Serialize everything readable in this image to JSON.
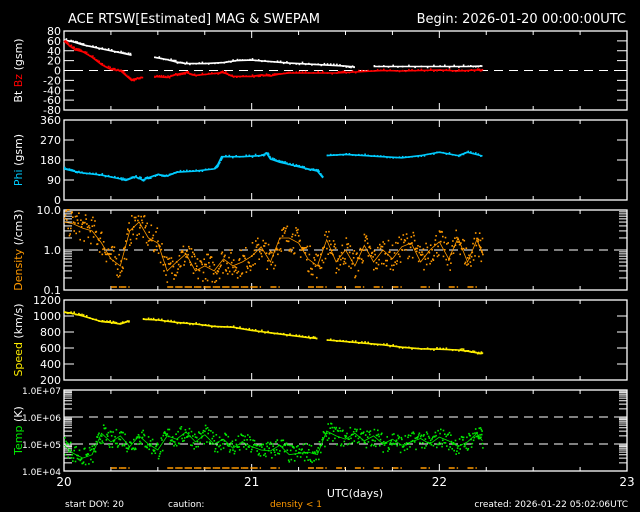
{
  "header": {
    "title": "ACE RTSW[Estimated] MAG & SWEPAM",
    "begin": "Begin: 2026-01-20 00:00:00UTC"
  },
  "footer": {
    "start_doy": "start DOY:  20",
    "caution": "caution:",
    "caution_density": "density < 1",
    "created": "created: 2026-01-22 05:02:06UTC",
    "xlabel": "UTC(days)"
  },
  "colors": {
    "bt": "#ffffff",
    "bz": "#ff0000",
    "phi": "#00ccff",
    "density": "#ff9900",
    "speed": "#ffee00",
    "temp": "#00ee00",
    "axis": "#ffffff"
  },
  "chart_data": [
    {
      "type": "line",
      "id": "mag",
      "ylabel_parts": [
        "Bt",
        "Bz",
        "(gsm)"
      ],
      "ylim": [
        -80,
        80
      ],
      "scale": "linear",
      "yticks": [
        80,
        60,
        40,
        20,
        0,
        -20,
        -40,
        -60,
        -80
      ],
      "ytick_labels": [
        "80",
        "60",
        "40",
        "20",
        "0",
        "-20",
        "-40",
        "-60",
        "-80"
      ],
      "dashed": [
        0
      ],
      "series": [
        {
          "name": "Bt",
          "color": "#ffffff",
          "points": [
            [
              20.0,
              62
            ],
            [
              20.05,
              58
            ],
            [
              20.1,
              52
            ],
            [
              20.2,
              44
            ],
            [
              20.3,
              36
            ],
            [
              20.36,
              31
            ],
            [
              20.42,
              null
            ],
            [
              20.48,
              27
            ],
            [
              20.55,
              22
            ],
            [
              20.6,
              17
            ],
            [
              20.65,
              14
            ],
            [
              20.75,
              14
            ],
            [
              20.85,
              16
            ],
            [
              20.92,
              20
            ],
            [
              21.0,
              21
            ],
            [
              21.1,
              18
            ],
            [
              21.2,
              15
            ],
            [
              21.3,
              13
            ],
            [
              21.4,
              11
            ],
            [
              21.5,
              9
            ],
            [
              21.55,
              7
            ],
            [
              21.62,
              null
            ],
            [
              21.65,
              8
            ],
            [
              21.8,
              8
            ],
            [
              22.0,
              8
            ],
            [
              22.15,
              8
            ],
            [
              22.23,
              9
            ]
          ]
        },
        {
          "name": "Bz",
          "color": "#ff0000",
          "points": [
            [
              20.0,
              60
            ],
            [
              20.03,
              50
            ],
            [
              20.06,
              42
            ],
            [
              20.1,
              38
            ],
            [
              20.15,
              27
            ],
            [
              20.2,
              12
            ],
            [
              20.25,
              2
            ],
            [
              20.3,
              0
            ],
            [
              20.33,
              -10
            ],
            [
              20.36,
              -20
            ],
            [
              20.38,
              -17
            ],
            [
              20.42,
              -14
            ],
            [
              20.44,
              null
            ],
            [
              20.48,
              -12
            ],
            [
              20.55,
              -14
            ],
            [
              20.6,
              -8
            ],
            [
              20.65,
              -4
            ],
            [
              20.7,
              -10
            ],
            [
              20.8,
              -6
            ],
            [
              20.85,
              -4
            ],
            [
              20.9,
              -12
            ],
            [
              21.0,
              -12
            ],
            [
              21.05,
              -9
            ],
            [
              21.1,
              -11
            ],
            [
              21.15,
              -7
            ],
            [
              21.2,
              -5
            ],
            [
              21.3,
              -5
            ],
            [
              21.45,
              -5
            ],
            [
              21.5,
              -4
            ],
            [
              21.6,
              -2
            ],
            [
              21.7,
              0
            ],
            [
              21.8,
              -1
            ],
            [
              21.9,
              0
            ],
            [
              22.0,
              1
            ],
            [
              22.1,
              -1
            ],
            [
              22.2,
              1
            ],
            [
              22.23,
              0
            ]
          ]
        }
      ]
    },
    {
      "type": "line",
      "id": "phi",
      "ylabel_parts": [
        "Phi",
        "(gsm)"
      ],
      "ylim": [
        0,
        360
      ],
      "scale": "linear",
      "yticks": [
        360,
        270,
        180,
        90,
        0
      ],
      "ytick_labels": [
        "360",
        "270",
        "180",
        "90",
        "0"
      ],
      "dashed": [],
      "series": [
        {
          "name": "Phi",
          "color": "#00ccff",
          "points": [
            [
              20.0,
              140
            ],
            [
              20.05,
              130
            ],
            [
              20.1,
              122
            ],
            [
              20.2,
              112
            ],
            [
              20.3,
              95
            ],
            [
              20.33,
              88
            ],
            [
              20.38,
              105
            ],
            [
              20.42,
              90
            ],
            [
              20.45,
              100
            ],
            [
              20.5,
              115
            ],
            [
              20.55,
              108
            ],
            [
              20.6,
              125
            ],
            [
              20.7,
              130
            ],
            [
              20.8,
              140
            ],
            [
              20.82,
              160
            ],
            [
              20.84,
              195
            ],
            [
              20.95,
              195
            ],
            [
              21.05,
              200
            ],
            [
              21.08,
              210
            ],
            [
              21.1,
              185
            ],
            [
              21.15,
              170
            ],
            [
              21.2,
              160
            ],
            [
              21.25,
              150
            ],
            [
              21.3,
              140
            ],
            [
              21.35,
              130
            ],
            [
              21.38,
              100
            ],
            [
              21.4,
              null
            ],
            [
              21.4,
              200
            ],
            [
              21.5,
              205
            ],
            [
              21.6,
              200
            ],
            [
              21.7,
              195
            ],
            [
              21.8,
              190
            ],
            [
              21.9,
              200
            ],
            [
              22.0,
              215
            ],
            [
              22.1,
              200
            ],
            [
              22.15,
              215
            ],
            [
              22.23,
              198
            ]
          ]
        }
      ]
    },
    {
      "type": "scatter",
      "id": "density",
      "ylabel_parts": [
        "Density",
        "(/cm3)"
      ],
      "ylim": [
        0.1,
        10
      ],
      "scale": "log",
      "yticks": [
        10,
        1,
        0.1
      ],
      "ytick_labels": [
        "10.0",
        "1.0",
        "0.1"
      ],
      "dashed": [
        1
      ],
      "series": [
        {
          "name": "Density",
          "color": "#ff9900",
          "points": [
            [
              20.0,
              5
            ],
            [
              20.05,
              4.5
            ],
            [
              20.1,
              3.5
            ],
            [
              20.15,
              3
            ],
            [
              20.2,
              1.5
            ],
            [
              20.25,
              0.6
            ],
            [
              20.3,
              0.4
            ],
            [
              20.35,
              3
            ],
            [
              20.4,
              5
            ],
            [
              20.45,
              2
            ],
            [
              20.5,
              1.5
            ],
            [
              20.55,
              0.3
            ],
            [
              20.6,
              0.5
            ],
            [
              20.65,
              0.8
            ],
            [
              20.7,
              0.3
            ],
            [
              20.75,
              0.4
            ],
            [
              20.8,
              0.3
            ],
            [
              20.85,
              0.6
            ],
            [
              20.9,
              0.4
            ],
            [
              20.95,
              0.5
            ],
            [
              21.0,
              0.7
            ],
            [
              21.05,
              1.2
            ],
            [
              21.1,
              0.5
            ],
            [
              21.15,
              2
            ],
            [
              21.2,
              2
            ],
            [
              21.25,
              1.5
            ],
            [
              21.3,
              0.6
            ],
            [
              21.35,
              0.4
            ],
            [
              21.4,
              1.8
            ],
            [
              21.45,
              0.5
            ],
            [
              21.5,
              1
            ],
            [
              21.55,
              0.4
            ],
            [
              21.6,
              1.3
            ],
            [
              21.65,
              0.5
            ],
            [
              21.7,
              1
            ],
            [
              21.75,
              0.6
            ],
            [
              21.8,
              1.2
            ],
            [
              21.85,
              1.5
            ],
            [
              21.9,
              0.5
            ],
            [
              21.95,
              1
            ],
            [
              22.0,
              1.6
            ],
            [
              22.05,
              0.6
            ],
            [
              22.1,
              2
            ],
            [
              22.15,
              0.5
            ],
            [
              22.2,
              1.8
            ],
            [
              22.23,
              0.8
            ]
          ]
        }
      ]
    },
    {
      "type": "line",
      "id": "speed",
      "ylabel_parts": [
        "Speed",
        "(km/s)"
      ],
      "ylim": [
        200,
        1200
      ],
      "scale": "linear",
      "yticks": [
        1200,
        1000,
        800,
        600,
        400,
        200
      ],
      "ytick_labels": [
        "1200",
        "1000",
        "800",
        "600",
        "400",
        "200"
      ],
      "dashed": [],
      "series": [
        {
          "name": "Speed",
          "color": "#ffee00",
          "points": [
            [
              20.0,
              1050
            ],
            [
              20.05,
              1030
            ],
            [
              20.1,
              1000
            ],
            [
              20.2,
              930
            ],
            [
              20.25,
              920
            ],
            [
              20.3,
              900
            ],
            [
              20.35,
              940
            ],
            [
              20.38,
              null
            ],
            [
              20.42,
              960
            ],
            [
              20.5,
              950
            ],
            [
              20.6,
              920
            ],
            [
              20.7,
              900
            ],
            [
              20.8,
              870
            ],
            [
              20.9,
              860
            ],
            [
              21.0,
              820
            ],
            [
              21.1,
              790
            ],
            [
              21.2,
              760
            ],
            [
              21.3,
              730
            ],
            [
              21.35,
              720
            ],
            [
              21.38,
              null
            ],
            [
              21.4,
              700
            ],
            [
              21.5,
              680
            ],
            [
              21.6,
              660
            ],
            [
              21.7,
              640
            ],
            [
              21.8,
              610
            ],
            [
              21.9,
              590
            ],
            [
              22.0,
              585
            ],
            [
              22.1,
              575
            ],
            [
              22.15,
              560
            ],
            [
              22.2,
              540
            ],
            [
              22.23,
              530
            ]
          ]
        }
      ]
    },
    {
      "type": "scatter",
      "id": "temp",
      "ylabel_parts": [
        "Temp",
        "(K)"
      ],
      "ylim": [
        10000,
        10000000
      ],
      "scale": "log",
      "yticks": [
        10000000,
        1000000,
        100000,
        10000
      ],
      "ytick_labels": [
        "1.0E+07",
        "1.0E+06",
        "1.0E+05",
        "1.0E+04"
      ],
      "dashed": [
        1000000,
        100000
      ],
      "series": [
        {
          "name": "Temp",
          "color": "#00ee00",
          "points": [
            [
              20.0,
              90000
            ],
            [
              20.05,
              45000
            ],
            [
              20.1,
              30000
            ],
            [
              20.15,
              40000
            ],
            [
              20.2,
              250000
            ],
            [
              20.25,
              120000
            ],
            [
              20.3,
              200000
            ],
            [
              20.35,
              80000
            ],
            [
              20.4,
              200000
            ],
            [
              20.45,
              100000
            ],
            [
              20.5,
              60000
            ],
            [
              20.55,
              200000
            ],
            [
              20.6,
              150000
            ],
            [
              20.65,
              280000
            ],
            [
              20.7,
              120000
            ],
            [
              20.75,
              220000
            ],
            [
              20.8,
              100000
            ],
            [
              20.85,
              150000
            ],
            [
              20.9,
              70000
            ],
            [
              20.95,
              120000
            ],
            [
              21.0,
              80000
            ],
            [
              21.05,
              60000
            ],
            [
              21.1,
              55000
            ],
            [
              21.15,
              90000
            ],
            [
              21.2,
              40000
            ],
            [
              21.25,
              45000
            ],
            [
              21.3,
              50000
            ],
            [
              21.35,
              40000
            ],
            [
              21.4,
              300000
            ],
            [
              21.45,
              200000
            ],
            [
              21.5,
              150000
            ],
            [
              21.55,
              250000
            ],
            [
              21.6,
              130000
            ],
            [
              21.65,
              200000
            ],
            [
              21.7,
              100000
            ],
            [
              21.75,
              150000
            ],
            [
              21.8,
              90000
            ],
            [
              21.85,
              120000
            ],
            [
              21.9,
              160000
            ],
            [
              21.95,
              100000
            ],
            [
              22.0,
              180000
            ],
            [
              22.05,
              130000
            ],
            [
              22.1,
              80000
            ],
            [
              22.15,
              120000
            ],
            [
              22.2,
              250000
            ],
            [
              22.23,
              130000
            ]
          ]
        }
      ]
    }
  ],
  "xaxis": {
    "range": [
      20,
      23
    ],
    "ticks": [
      20,
      21,
      22,
      23
    ],
    "tick_labels": [
      "20",
      "21",
      "22",
      "23"
    ]
  }
}
